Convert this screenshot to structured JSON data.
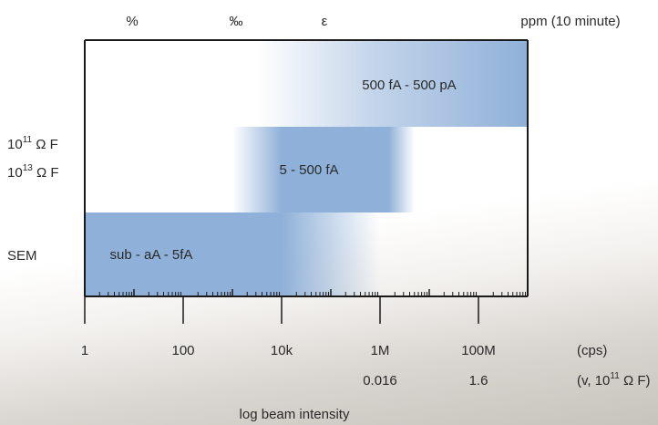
{
  "chart_data": {
    "type": "range-bar",
    "title": "",
    "xlabel": "log beam intensity",
    "x_scale": "log",
    "xlim": [
      1,
      1000000000
    ],
    "x_ticks": [
      {
        "value": 1,
        "label": "1",
        "secondary": ""
      },
      {
        "value": 100,
        "label": "100",
        "secondary": ""
      },
      {
        "value": 10000,
        "label": "10k",
        "secondary": ""
      },
      {
        "value": 1000000,
        "label": "1M",
        "secondary": "0.016"
      },
      {
        "value": 100000000,
        "label": "100M",
        "secondary": "1.6"
      }
    ],
    "x_unit_labels": [
      "(cps)",
      "(v, 10",
      "11",
      " Ω F)"
    ],
    "top_labels": [
      "%",
      "‰",
      "ε",
      "ppm (10 minute)"
    ],
    "categories": [
      {
        "base": "10",
        "exp": "11",
        "rest": " Ω F"
      },
      {
        "base": "10",
        "exp": "13",
        "rest": " Ω F"
      },
      {
        "base": "SEM",
        "exp": "",
        "rest": ""
      }
    ],
    "bars": [
      {
        "row": 0,
        "label": "500 fA - 500 pA",
        "x_start": 3000,
        "x_solid_start": 100000,
        "x_end": 1000000000
      },
      {
        "row": 1,
        "label": "5 - 500 fA",
        "x_start": 1000,
        "x_solid_start": 10000,
        "x_solid_end": 1500000,
        "x_end": 5000000
      },
      {
        "row": 2,
        "label": "sub - aA - 5fA",
        "x_start": 1,
        "x_solid_end": 10000,
        "x_end": 1000000
      }
    ],
    "colors": {
      "bar": "#8fb0d8",
      "axis": "#1a1a1a"
    },
    "grid": false
  }
}
